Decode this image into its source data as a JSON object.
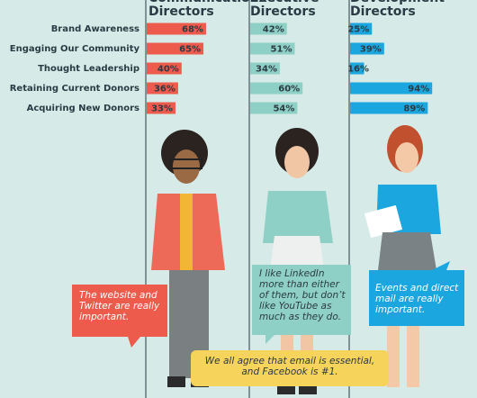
{
  "chart_data": {
    "type": "bar",
    "categories": [
      "Brand Awareness",
      "Engaging Our Community",
      "Thought Leadership",
      "Retaining Current Donors",
      "Acquiring New Donors"
    ],
    "series": [
      {
        "name": "Communications Directors",
        "color": "#ec5b4b",
        "values": [
          68,
          65,
          40,
          36,
          33
        ],
        "value_labels": [
          "68%",
          "65%",
          "40%",
          "36%",
          "33%"
        ]
      },
      {
        "name": "Executive Directors",
        "color": "#8fd0c6",
        "values": [
          42,
          51,
          34,
          60,
          54
        ],
        "value_labels": [
          "42%",
          "51%",
          "34%",
          "60%",
          "54%"
        ]
      },
      {
        "name": "Development Directors",
        "color": "#1ba6df",
        "values": [
          25,
          39,
          16,
          94,
          89
        ],
        "value_labels": [
          "25%",
          "39%",
          "16%",
          "94%",
          "89%"
        ]
      }
    ],
    "annotations": [
      {
        "text": "The website and Twitter are really important."
      },
      {
        "text": "I like LinkedIn more than either of them, but don’t like YouTube as much as they do."
      },
      {
        "text": "Events and direct mail are really important."
      },
      {
        "text": "We all agree that email is essential, and Facebook is #1."
      }
    ]
  }
}
